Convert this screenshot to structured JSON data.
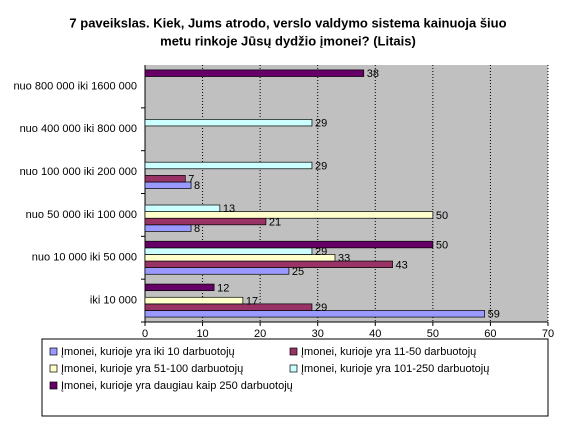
{
  "chart_data": {
    "type": "hbar",
    "title": "7 paveikslas. Kiek, Jums atrodo, verslo valdymo sistema kainuoja šiuo",
    "subtitle": "metu rinkoje Jūsų dydžio įmonei? (Litais)",
    "categories": [
      "iki 10 000",
      "nuo 10 000 iki 50 000",
      "nuo 50 000 iki 100 000",
      "nuo 100 000 iki 200 000",
      "nuo 400 000 iki 800 000",
      "nuo 800 000 iki 1600 000"
    ],
    "series": [
      {
        "name": "Įmonei, kurioje yra iki 10 darbuotojų",
        "color": "#9999ff",
        "values": [
          59,
          25,
          8,
          8,
          null,
          null
        ]
      },
      {
        "name": "Įmonei, kurioje yra  11-50 darbuotojų",
        "color": "#993366",
        "values": [
          29,
          43,
          21,
          7,
          null,
          null
        ]
      },
      {
        "name": "Įmonei, kurioje yra 51-100 darbuotojų",
        "color": "#ffffcc",
        "values": [
          17,
          33,
          50,
          null,
          null,
          null
        ]
      },
      {
        "name": "Įmonei, kurioje yra 101-250 darbuotojų",
        "color": "#ccffff",
        "values": [
          null,
          29,
          13,
          29,
          29,
          null
        ]
      },
      {
        "name": "Įmonei, kurioje yra daugiau kaip 250 darbuotojų",
        "color": "#660066",
        "values": [
          12,
          50,
          null,
          null,
          null,
          38
        ]
      }
    ],
    "xlim": [
      0,
      70
    ],
    "xticks": [
      0,
      10,
      20,
      30,
      40,
      50,
      60,
      70
    ],
    "grid": true,
    "legend": "bottom"
  }
}
